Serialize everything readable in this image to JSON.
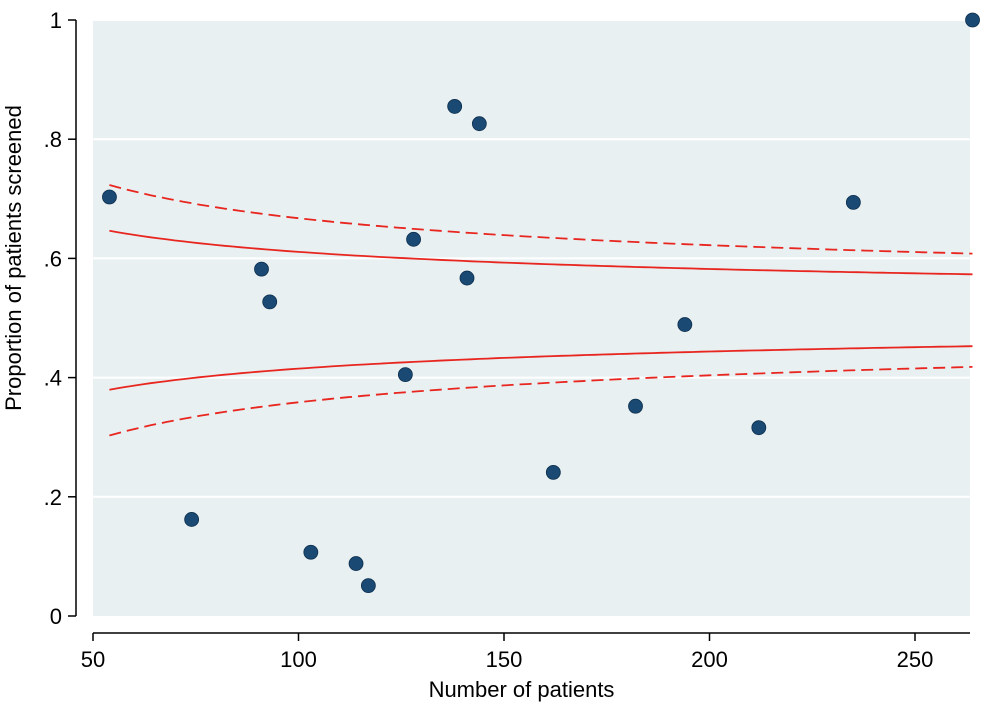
{
  "chart_data": {
    "type": "scatter",
    "title": "",
    "xlabel": "Number of patients",
    "ylabel": "Proportion of patients screened",
    "xlim": [
      50,
      265
    ],
    "ylim": [
      0,
      1
    ],
    "x_ticks": [
      50,
      100,
      150,
      200,
      250
    ],
    "x_tick_labels": [
      "50",
      "100",
      "150",
      "200",
      "250"
    ],
    "y_ticks": [
      0,
      0.2,
      0.4,
      0.6,
      0.8,
      1
    ],
    "y_tick_labels": [
      "0",
      ".2",
      ".4",
      ".6",
      ".8",
      "1"
    ],
    "grid": "horizontal",
    "legend": "none",
    "colors": {
      "plot_background": "#e8f0f2",
      "points": "#1a4a73",
      "limits": "#e8261f"
    },
    "points": [
      {
        "x": 54,
        "y": 0.703
      },
      {
        "x": 74,
        "y": 0.162
      },
      {
        "x": 91,
        "y": 0.582
      },
      {
        "x": 93,
        "y": 0.527
      },
      {
        "x": 103,
        "y": 0.107
      },
      {
        "x": 114,
        "y": 0.088
      },
      {
        "x": 117,
        "y": 0.051
      },
      {
        "x": 126,
        "y": 0.405
      },
      {
        "x": 128,
        "y": 0.632
      },
      {
        "x": 138,
        "y": 0.855
      },
      {
        "x": 141,
        "y": 0.567
      },
      {
        "x": 144,
        "y": 0.826
      },
      {
        "x": 162,
        "y": 0.241
      },
      {
        "x": 182,
        "y": 0.352
      },
      {
        "x": 194,
        "y": 0.489
      },
      {
        "x": 212,
        "y": 0.316
      },
      {
        "x": 235,
        "y": 0.694
      },
      {
        "x": 264,
        "y": 1.0
      }
    ],
    "center": 0.513,
    "limit_lines": [
      {
        "style": "solid",
        "z": 1.96
      },
      {
        "style": "dashed",
        "z": 3.09
      }
    ],
    "limit_x_range": [
      54,
      264
    ]
  }
}
